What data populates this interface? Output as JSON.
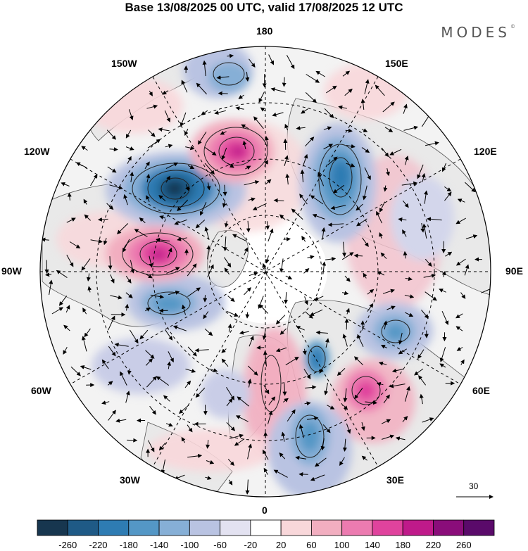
{
  "title": "Base 13/08/2025 00 UTC, valid 17/08/2025 12 UTC",
  "brand": "MODES",
  "brand_mark": "©",
  "longitude_labels": {
    "n180": "180",
    "w150": "150W",
    "e150": "150E",
    "w120": "120W",
    "e120": "120E",
    "w90": "90W",
    "e90": "90E",
    "w60": "60W",
    "e60": "60E",
    "w30": "30W",
    "e30": "30E",
    "s0": "0"
  },
  "reference_vector": "30",
  "colorbar": {
    "labels": [
      "-260",
      "-220",
      "-180",
      "-140",
      "-100",
      "-60",
      "-20",
      "20",
      "60",
      "100",
      "140",
      "180",
      "220",
      "260"
    ],
    "colors": [
      "#17364f",
      "#1f5a86",
      "#2e7cb3",
      "#5497c6",
      "#86afd6",
      "#b9c3e2",
      "#e3e2f1",
      "#ffffff",
      "#f8d7da",
      "#f2aec0",
      "#ec7bb0",
      "#e0439d",
      "#bf1a8a",
      "#8a0d7a",
      "#5a0a6a"
    ]
  },
  "colors": {
    "ocean": "#f3f3f3",
    "coast": "#555555",
    "grid": "#000000"
  }
}
